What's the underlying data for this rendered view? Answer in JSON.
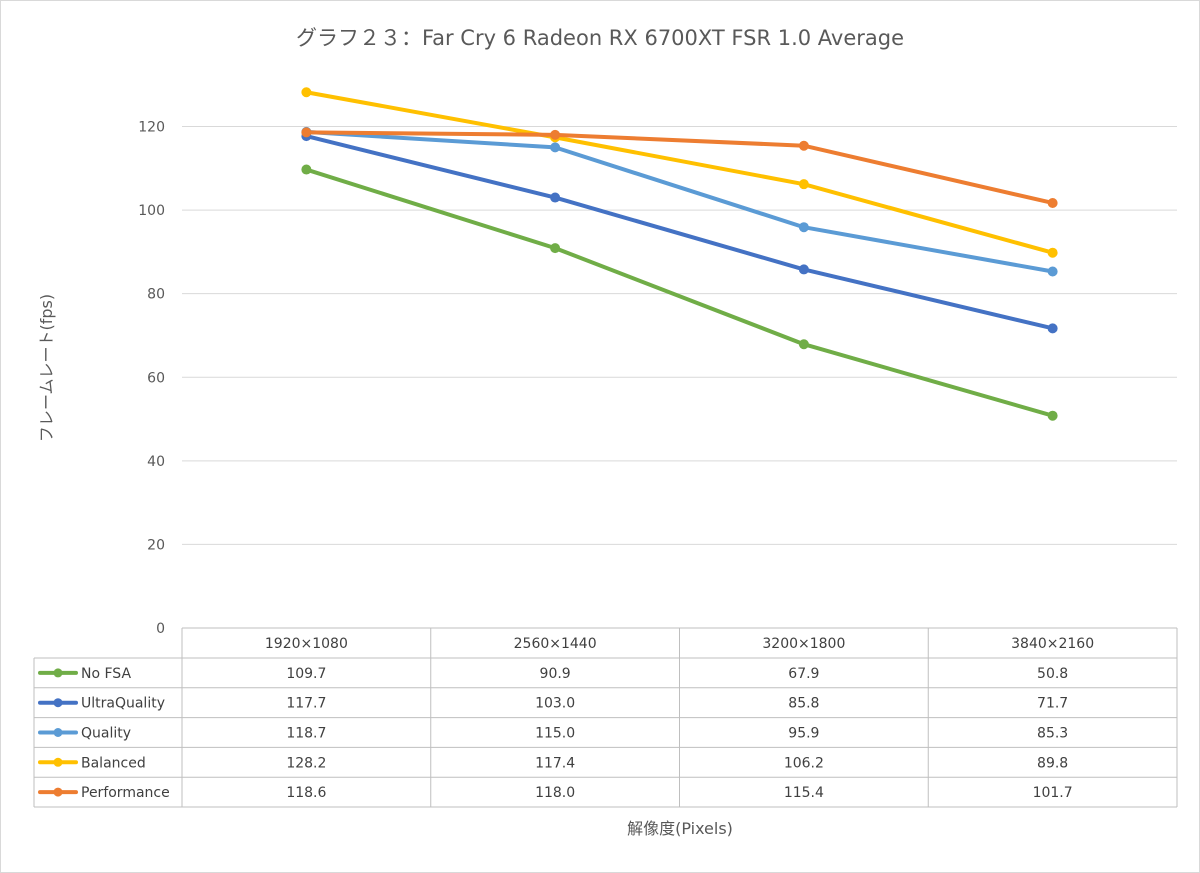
{
  "chart_data": {
    "type": "line",
    "title": "グラフ２３：Far Cry 6 Radeon RX 6700XT FSR 1.0 Average",
    "xlabel": "解像度(Pixels)",
    "ylabel": "フレームレート(fps)",
    "categories": [
      "1920×1080",
      "2560×1440",
      "3200×1800",
      "3840×2160"
    ],
    "ylim": [
      0,
      120
    ],
    "yticks": [
      0,
      20,
      40,
      60,
      80,
      100,
      120
    ],
    "grid": true,
    "legend": "data-table",
    "series": [
      {
        "name": "No FSA",
        "color": "#70ad47",
        "values": [
          109.7,
          90.9,
          67.9,
          50.8
        ],
        "labels": [
          "109.7",
          "90.9",
          "67.9",
          "50.8"
        ]
      },
      {
        "name": "UltraQuality",
        "color": "#4472c4",
        "values": [
          117.7,
          103.0,
          85.8,
          71.7
        ],
        "labels": [
          "117.7",
          "103.0",
          "85.8",
          "71.7"
        ]
      },
      {
        "name": "Quality",
        "color": "#5b9bd5",
        "values": [
          118.7,
          115.0,
          95.9,
          85.3
        ],
        "labels": [
          "118.7",
          "115.0",
          "95.9",
          "85.3"
        ]
      },
      {
        "name": "Balanced",
        "color": "#ffc000",
        "values": [
          128.2,
          117.4,
          106.2,
          89.8
        ],
        "labels": [
          "128.2",
          "117.4",
          "106.2",
          "89.8"
        ]
      },
      {
        "name": "Performance",
        "color": "#ed7d31",
        "values": [
          118.6,
          118.0,
          115.4,
          101.7
        ],
        "labels": [
          "118.6",
          "118.0",
          "115.4",
          "101.7"
        ]
      }
    ]
  }
}
